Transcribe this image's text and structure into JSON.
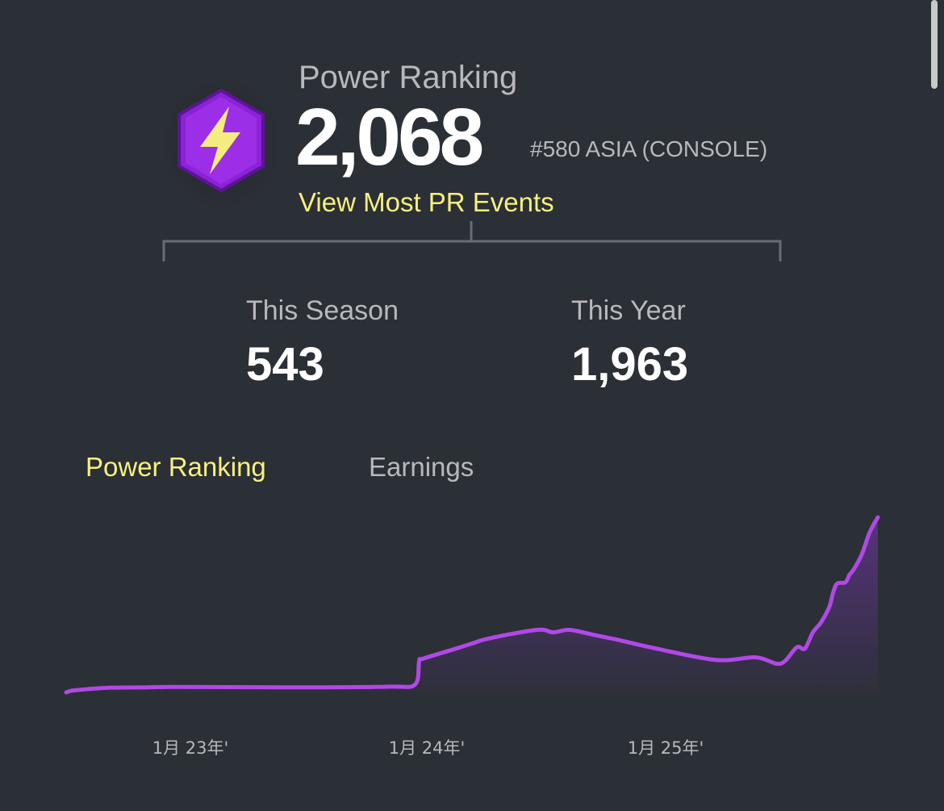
{
  "header": {
    "title": "Power Ranking",
    "value": "2,068",
    "rank": "#580 ASIA (CONSOLE)",
    "link": "View Most PR Events"
  },
  "stats": {
    "season_label": "This Season",
    "season_value": "543",
    "year_label": "This Year",
    "year_value": "1,963"
  },
  "tabs": [
    {
      "label": "Power Ranking",
      "active": true
    },
    {
      "label": "Earnings",
      "active": false
    }
  ],
  "colors": {
    "background": "#2b2f36",
    "accent": "#f8f07f",
    "line": "#b148e8",
    "badge": "#8a22d6"
  },
  "icons": {
    "badge": "lightning-bolt-hexagon-icon"
  },
  "chart_data": {
    "type": "area",
    "x_tick_labels": [
      "1月 23年'",
      "1月 24年'",
      "1月 25年'"
    ],
    "x": [
      0,
      0.01,
      0.05,
      0.1,
      0.13,
      0.2,
      0.3,
      0.4,
      0.43,
      0.435,
      0.44,
      0.48,
      0.5,
      0.52,
      0.58,
      0.6,
      0.62,
      0.65,
      0.68,
      0.72,
      0.8,
      0.85,
      0.88,
      0.9,
      0.91,
      0.92,
      0.93,
      0.94,
      0.945,
      0.95,
      0.96,
      0.965,
      0.97,
      0.98,
      0.99,
      1.0
    ],
    "y": [
      0.0,
      0.008,
      0.018,
      0.02,
      0.022,
      0.021,
      0.02,
      0.023,
      0.032,
      0.125,
      0.135,
      0.175,
      0.195,
      0.215,
      0.25,
      0.24,
      0.25,
      0.23,
      0.21,
      0.18,
      0.13,
      0.14,
      0.115,
      0.18,
      0.175,
      0.24,
      0.28,
      0.34,
      0.4,
      0.435,
      0.44,
      0.47,
      0.49,
      0.55,
      0.64,
      0.7
    ]
  }
}
